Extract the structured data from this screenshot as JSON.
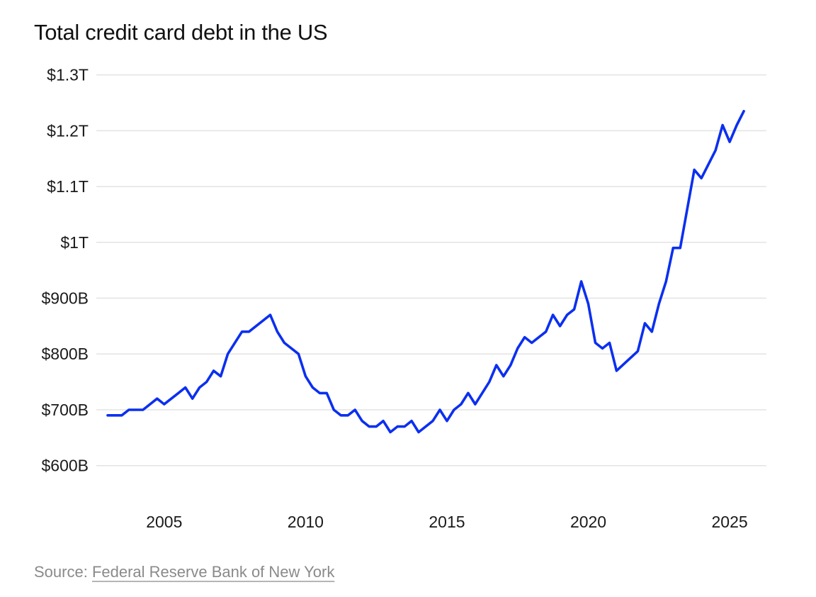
{
  "colors": {
    "line": "#0b2ff0",
    "grid": "#e3e3e3",
    "text": "#111111",
    "source": "#8a8a8a"
  },
  "source": {
    "prefix": "Source:",
    "link_text": "Federal Reserve Bank of New York"
  },
  "chart_data": {
    "type": "line",
    "title": "Total credit card debt in the US",
    "xlabel": "",
    "ylabel": "",
    "grid": true,
    "legend": "none",
    "xlim": [
      2002.6,
      2026.3
    ],
    "ylim": [
      545,
      1330
    ],
    "yticks": [
      600,
      700,
      800,
      900,
      1000,
      1100,
      1200,
      1300
    ],
    "ytick_labels": [
      "$600B",
      "$700B",
      "$800B",
      "$900B",
      "$1T",
      "$1.1T",
      "$1.2T",
      "$1.3T"
    ],
    "xticks": [
      2005,
      2010,
      2015,
      2020,
      2025
    ],
    "xtick_labels": [
      "2005",
      "2010",
      "2015",
      "2020",
      "2025"
    ],
    "series": [
      {
        "name": "Total credit card debt",
        "x": [
          2003.0,
          2003.5,
          2003.75,
          2004.25,
          2004.75,
          2005.0,
          2005.5,
          2005.75,
          2006.0,
          2006.25,
          2006.5,
          2006.75,
          2007.0,
          2007.25,
          2007.75,
          2008.0,
          2008.75,
          2009.0,
          2009.25,
          2009.75,
          2010.0,
          2010.25,
          2010.5,
          2010.75,
          2011.0,
          2011.25,
          2011.5,
          2011.75,
          2012.0,
          2012.25,
          2012.5,
          2012.75,
          2013.0,
          2013.25,
          2013.5,
          2013.75,
          2014.0,
          2014.5,
          2014.75,
          2015.0,
          2015.25,
          2015.5,
          2015.75,
          2016.0,
          2016.5,
          2016.75,
          2017.0,
          2017.25,
          2017.5,
          2017.75,
          2018.0,
          2018.5,
          2018.75,
          2019.0,
          2019.25,
          2019.5,
          2019.75,
          2020.0,
          2020.25,
          2020.5,
          2020.75,
          2021.0,
          2021.75,
          2022.0,
          2022.25,
          2022.5,
          2022.75,
          2023.0,
          2023.25,
          2023.75,
          2024.0,
          2024.5,
          2024.75,
          2025.0,
          2025.25,
          2025.5
        ],
        "values": [
          690,
          690,
          700,
          700,
          720,
          710,
          730,
          740,
          720,
          740,
          750,
          770,
          760,
          800,
          840,
          840,
          870,
          840,
          820,
          800,
          760,
          740,
          730,
          730,
          700,
          690,
          690,
          700,
          680,
          670,
          670,
          680,
          660,
          670,
          670,
          680,
          660,
          680,
          700,
          680,
          700,
          710,
          730,
          710,
          750,
          780,
          760,
          780,
          810,
          830,
          820,
          840,
          870,
          850,
          870,
          880,
          930,
          890,
          820,
          810,
          820,
          770,
          805,
          855,
          840,
          890,
          930,
          990,
          990,
          1130,
          1115,
          1165,
          1210,
          1180,
          1210,
          1235
        ]
      }
    ]
  }
}
